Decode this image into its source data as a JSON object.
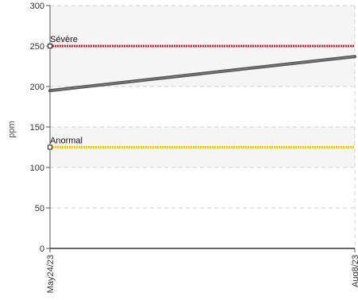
{
  "chart_data": {
    "type": "line",
    "title": "",
    "xlabel": "",
    "ylabel": "ppm",
    "ylim": [
      0,
      300
    ],
    "yticks": [
      0,
      50,
      100,
      150,
      200,
      250,
      300
    ],
    "xticks": [
      "May24/23",
      "Aug8/23"
    ],
    "grid": true,
    "series": [
      {
        "values": [
          195,
          237
        ],
        "color": "#555555"
      }
    ],
    "thresholds": [
      {
        "label": "Sévère",
        "value": 250,
        "color": "#e8202a"
      },
      {
        "label": "Anormal",
        "value": 125,
        "color": "#f2c800"
      }
    ],
    "bands": [
      {
        "from": 100,
        "to": 150,
        "color": "#f5f5f5"
      },
      {
        "from": 200,
        "to": 300,
        "color": "#f5f5f5"
      }
    ]
  }
}
